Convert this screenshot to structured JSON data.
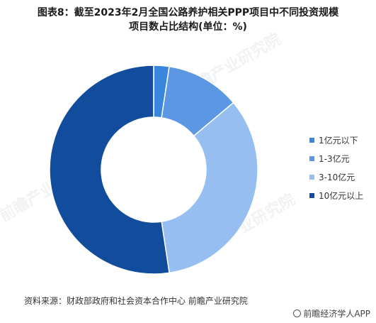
{
  "title_line1": "图表8：截至2023年2月全国公路养护相关PPP项目中不同投资规模",
  "title_line2": "项目数占比结构(单位：%)",
  "source": "资料来源：财政部政府和社会资本合作中心 前瞻产业研究院",
  "brand": "前瞻经济学人APP",
  "watermark": "前瞻产业研究院",
  "chart_data": {
    "type": "pie",
    "subtype": "donut",
    "title": "图表8：截至2023年2月全国公路养护相关PPP项目中不同投资规模项目数占比结构(单位：%)",
    "unit": "%",
    "categories": [
      "1亿元以下",
      "1-3亿元",
      "3-10亿元",
      "10亿元以上"
    ],
    "values": [
      2.4,
      11.5,
      33.7,
      52.4
    ],
    "colors": [
      "#3a86dd",
      "#5b97e2",
      "#96bef1",
      "#124c9c"
    ],
    "legend_position": "right",
    "data_labels": false
  }
}
